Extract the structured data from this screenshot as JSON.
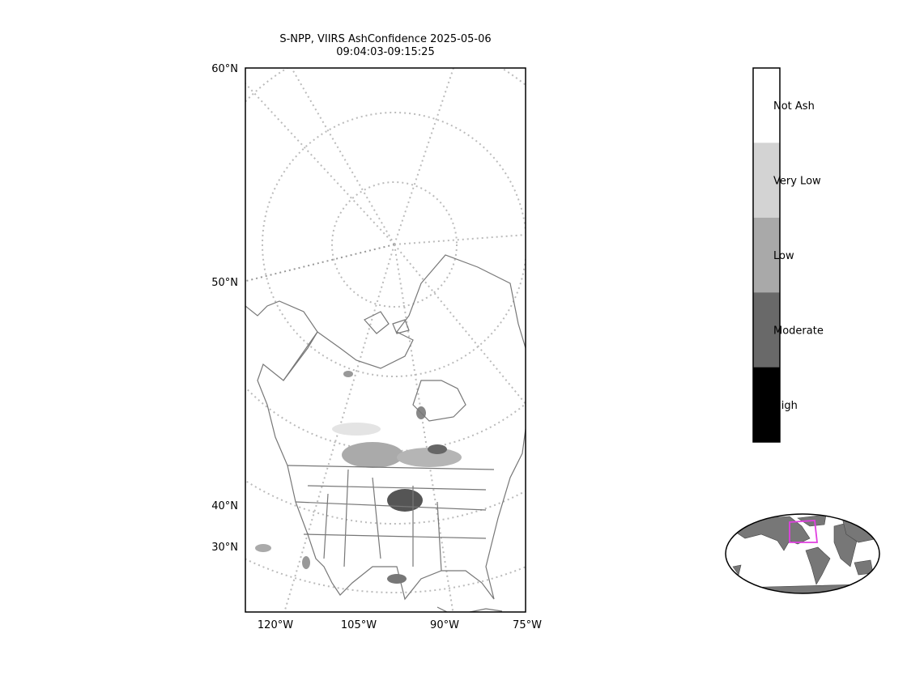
{
  "title": [
    "S-NPP, VIIRS AshConfidence 2025-05-06",
    "09:04:03-09:15:25"
  ],
  "lat_labels": [
    "60°N",
    "50°N",
    "40°N",
    "30°N"
  ],
  "lon_labels": [
    "120°W",
    "105°W",
    "90°W",
    "75°W"
  ],
  "colorbar": {
    "labels": [
      "Not Ash",
      "Very Low",
      "Low",
      "Moderate",
      "High"
    ],
    "colors": [
      "#ffffff",
      "#d3d3d3",
      "#a9a9a9",
      "#696969",
      "#000000"
    ]
  }
}
